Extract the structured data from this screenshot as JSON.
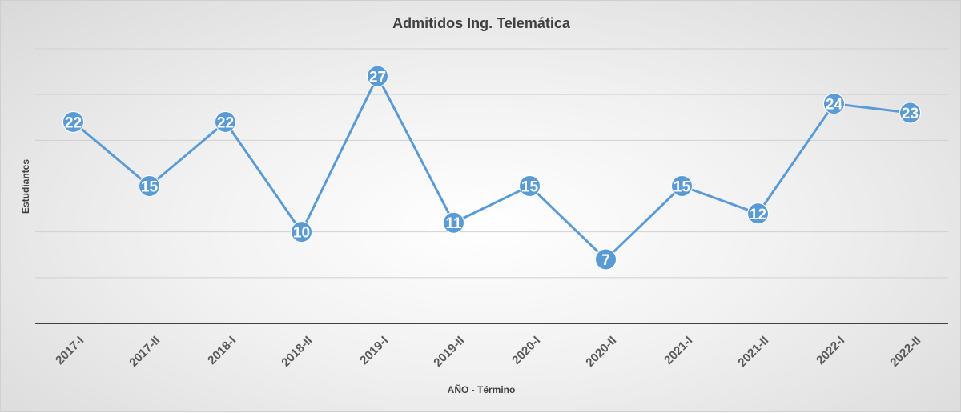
{
  "chart_data": {
    "type": "line",
    "title": "Admitidos  Ing. Telemática",
    "xlabel": "AÑO - Término",
    "ylabel": "Estudiantes",
    "categories": [
      "2017-I",
      "2017-II",
      "2018-I",
      "2018-II",
      "2019-I",
      "2019-II",
      "2020-I",
      "2020-II",
      "2021-I",
      "2021-II",
      "2022-I",
      "2022-II"
    ],
    "series": [
      {
        "values": [
          22,
          15,
          22,
          10,
          27,
          11,
          15,
          7,
          15,
          12,
          24,
          23
        ]
      }
    ],
    "ylim": [
      0,
      30
    ],
    "grid": true,
    "legend": "none",
    "colors": {
      "line": "#5b9bd5",
      "marker": "#5b9bd5",
      "label": "#ffffff",
      "axis": "#404040",
      "grid": "#d0d0d0"
    }
  }
}
